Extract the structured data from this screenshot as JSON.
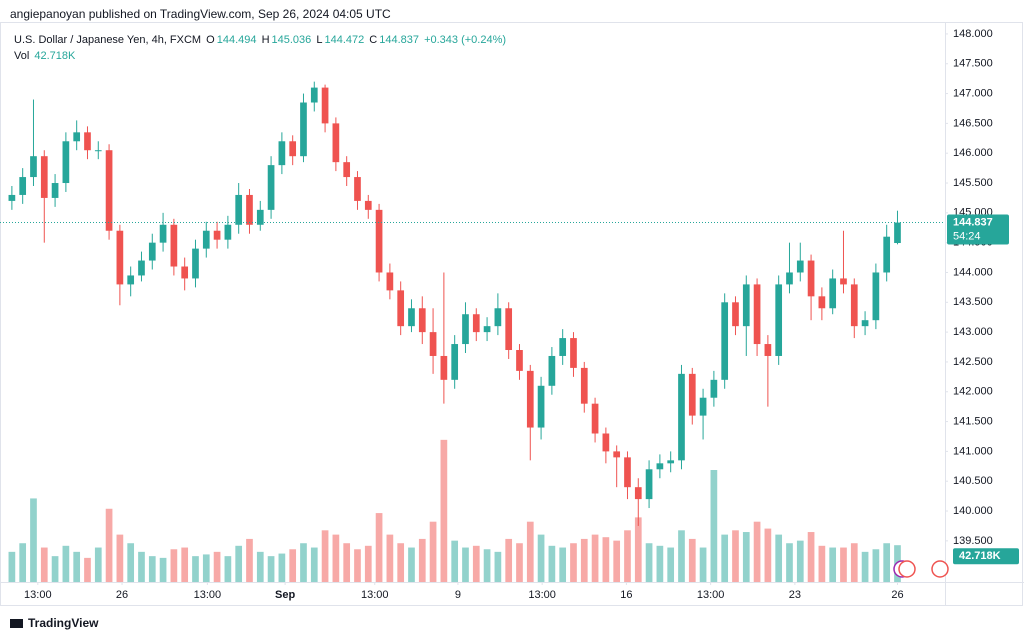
{
  "chart_data": {
    "type": "candlestick",
    "publisher": "angiepanoyan published on TradingView.com, Sep 26, 2024 04:05 UTC",
    "title": "U.S. Dollar / Japanese Yen, 4h, FXCM",
    "ohlc_letters": {
      "open": "O",
      "high": "H",
      "low": "L",
      "close": "C"
    },
    "change": "+0.343 (+0.24%)",
    "volume_label": "Vol",
    "countdown": "54:24",
    "footer": "TradingView",
    "up_color": "#26a69a",
    "down_color": "#ef5350",
    "grid": false,
    "x": [
      0,
      1,
      2,
      3,
      4,
      5,
      6,
      7,
      8,
      9,
      10,
      11,
      12,
      13,
      14,
      15,
      16,
      17,
      18,
      19,
      20,
      21,
      22,
      23,
      24,
      25,
      26,
      27,
      28,
      29,
      30,
      31,
      32,
      33,
      34,
      35,
      36,
      37,
      38,
      39,
      40,
      41,
      42,
      43,
      44,
      45,
      46,
      47,
      48,
      49,
      50,
      51,
      52,
      53,
      54,
      55,
      56,
      57,
      58,
      59,
      60,
      61,
      62,
      63,
      64,
      65,
      66,
      67,
      68,
      69,
      70,
      71,
      72,
      73,
      74,
      75,
      76,
      77,
      78,
      79,
      80,
      81,
      82
    ],
    "open": [
      145.2,
      145.3,
      145.6,
      145.95,
      145.25,
      145.5,
      146.2,
      146.35,
      146.05,
      146.05,
      144.7,
      143.8,
      143.95,
      144.2,
      144.5,
      144.8,
      144.1,
      143.9,
      144.4,
      144.7,
      144.55,
      144.8,
      145.3,
      144.8,
      145.05,
      145.8,
      146.2,
      145.95,
      146.85,
      147.1,
      146.5,
      145.85,
      145.6,
      145.2,
      145.05,
      144.0,
      143.7,
      143.1,
      143.4,
      143.0,
      142.6,
      142.2,
      142.8,
      143.3,
      143.0,
      143.1,
      143.4,
      142.7,
      142.35,
      141.4,
      142.1,
      142.6,
      142.9,
      142.4,
      141.8,
      141.3,
      141.0,
      140.9,
      140.4,
      140.2,
      140.7,
      140.8,
      140.85,
      142.3,
      141.6,
      141.9,
      142.2,
      143.5,
      143.1,
      143.8,
      142.8,
      142.6,
      143.8,
      144.0,
      144.2,
      143.6,
      143.4,
      143.9,
      143.8,
      143.1,
      143.2,
      144.0,
      144.494
    ],
    "high": [
      145.45,
      145.75,
      146.9,
      146.05,
      145.65,
      146.35,
      146.55,
      146.45,
      146.2,
      146.15,
      144.8,
      144.1,
      144.35,
      144.65,
      145.0,
      144.9,
      144.25,
      144.55,
      144.85,
      144.85,
      144.95,
      145.5,
      145.4,
      145.2,
      145.95,
      146.35,
      146.3,
      147.0,
      147.2,
      147.15,
      146.6,
      145.95,
      145.7,
      145.3,
      145.15,
      144.15,
      143.85,
      143.55,
      143.6,
      143.4,
      144.0,
      142.95,
      143.5,
      143.4,
      143.25,
      143.65,
      143.5,
      142.8,
      142.45,
      142.25,
      142.75,
      143.05,
      143.0,
      142.5,
      141.9,
      141.4,
      141.1,
      141.0,
      140.55,
      140.85,
      140.95,
      141.0,
      142.45,
      142.4,
      142.05,
      142.35,
      143.65,
      143.6,
      143.95,
      143.9,
      142.95,
      143.95,
      144.5,
      144.5,
      144.3,
      143.75,
      144.05,
      144.7,
      143.9,
      143.35,
      144.15,
      144.8,
      145.036
    ],
    "low": [
      145.05,
      145.15,
      145.45,
      144.5,
      145.1,
      145.35,
      146.05,
      145.9,
      145.9,
      144.55,
      143.45,
      143.6,
      143.85,
      144.05,
      144.35,
      143.95,
      143.7,
      143.75,
      144.25,
      144.4,
      144.4,
      144.65,
      144.65,
      144.7,
      144.9,
      145.65,
      145.8,
      145.85,
      146.7,
      146.35,
      145.7,
      145.45,
      145.05,
      144.9,
      143.85,
      143.55,
      142.95,
      143.0,
      142.8,
      142.3,
      141.8,
      142.05,
      142.65,
      142.85,
      142.85,
      142.95,
      142.55,
      142.2,
      140.85,
      141.2,
      141.95,
      142.45,
      142.25,
      141.65,
      141.15,
      140.8,
      140.4,
      140.2,
      139.75,
      140.05,
      140.55,
      140.65,
      140.7,
      141.45,
      141.2,
      141.75,
      142.05,
      142.95,
      142.6,
      142.6,
      141.75,
      142.45,
      143.65,
      143.85,
      143.2,
      143.2,
      143.3,
      143.65,
      142.9,
      142.95,
      143.05,
      143.85,
      144.472
    ],
    "close": [
      145.3,
      145.6,
      145.95,
      145.25,
      145.5,
      146.2,
      146.35,
      146.05,
      146.05,
      144.7,
      143.8,
      143.95,
      144.2,
      144.5,
      144.8,
      144.1,
      143.9,
      144.4,
      144.7,
      144.55,
      144.8,
      145.3,
      144.8,
      145.05,
      145.8,
      146.2,
      145.95,
      146.85,
      147.1,
      146.5,
      145.85,
      145.6,
      145.2,
      145.05,
      144.0,
      143.7,
      143.1,
      143.4,
      143.0,
      142.6,
      142.2,
      142.8,
      143.3,
      143.0,
      143.1,
      143.4,
      142.7,
      142.35,
      141.4,
      142.1,
      142.6,
      142.9,
      142.4,
      141.8,
      141.3,
      141.0,
      140.9,
      140.4,
      140.2,
      140.7,
      140.8,
      140.85,
      142.3,
      141.6,
      141.9,
      142.2,
      143.5,
      143.1,
      143.8,
      142.8,
      142.6,
      143.8,
      144.0,
      144.2,
      143.6,
      143.4,
      143.9,
      143.8,
      143.1,
      143.2,
      144.0,
      144.6,
      144.837
    ],
    "volume": [
      35000,
      45000,
      97000,
      40000,
      30000,
      42000,
      35000,
      28000,
      40000,
      85000,
      55000,
      45000,
      35000,
      30000,
      28000,
      38000,
      40000,
      30000,
      32000,
      35000,
      30000,
      42000,
      50000,
      35000,
      30000,
      33000,
      38000,
      45000,
      40000,
      60000,
      55000,
      45000,
      38000,
      42000,
      80000,
      55000,
      45000,
      40000,
      50000,
      70000,
      165000,
      48000,
      40000,
      42000,
      38000,
      35000,
      50000,
      45000,
      70000,
      55000,
      42000,
      40000,
      45000,
      50000,
      55000,
      52000,
      48000,
      60000,
      75000,
      45000,
      42000,
      40000,
      60000,
      50000,
      40000,
      130000,
      55000,
      60000,
      58000,
      70000,
      62000,
      55000,
      45000,
      48000,
      58000,
      42000,
      40000,
      40000,
      45000,
      35000,
      38000,
      45000,
      42718
    ],
    "volume_value_labels": {
      "82": "42.718K"
    },
    "vlim": [
      0,
      650000
    ],
    "xlim": [
      -1.1,
      86.4
    ],
    "xticks": [
      {
        "value": 2.4,
        "label": "13:00"
      },
      {
        "value": 10.2,
        "label": "26"
      },
      {
        "value": 18.1,
        "label": "13:00"
      },
      {
        "value": 25.3,
        "label": "Sep"
      },
      {
        "value": 33.6,
        "label": "13:00"
      },
      {
        "value": 41.3,
        "label": "9"
      },
      {
        "value": 49.1,
        "label": "13:00"
      },
      {
        "value": 56.9,
        "label": "16"
      },
      {
        "value": 64.7,
        "label": "13:00"
      },
      {
        "value": 72.5,
        "label": "23"
      },
      {
        "value": 82,
        "label": "26"
      }
    ],
    "ylim": [
      138.81,
      148.2
    ],
    "yticks": [
      {
        "value": 139.5,
        "label": "139.500"
      },
      {
        "value": 140,
        "label": "140.000"
      },
      {
        "value": 140.5,
        "label": "140.500"
      },
      {
        "value": 141,
        "label": "141.000"
      },
      {
        "value": 141.5,
        "label": "141.500"
      },
      {
        "value": 142,
        "label": "142.000"
      },
      {
        "value": 142.5,
        "label": "142.500"
      },
      {
        "value": 143,
        "label": "143.000"
      },
      {
        "value": 143.5,
        "label": "143.500"
      },
      {
        "value": 144,
        "label": "144.000"
      },
      {
        "value": 144.5,
        "label": "144.500"
      },
      {
        "value": 145,
        "label": "145.000"
      },
      {
        "value": 145.5,
        "label": "145.500"
      },
      {
        "value": 146,
        "label": "146.000"
      },
      {
        "value": 146.5,
        "label": "146.500"
      },
      {
        "value": 147,
        "label": "147.000"
      },
      {
        "value": 147.5,
        "label": "147.500"
      },
      {
        "value": 148,
        "label": "148.000"
      }
    ]
  }
}
